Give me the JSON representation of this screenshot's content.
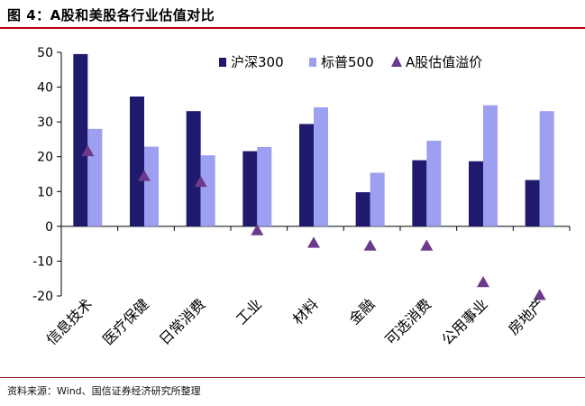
{
  "header": {
    "title": "图 4：A股和美股各行业估值对比"
  },
  "footer": {
    "source": "资料来源：Wind、国信证券经济研究所整理"
  },
  "colors": {
    "title_rule": "#c0000f",
    "csi300": "#1f1a6e",
    "sp500": "#9d9ff0",
    "premium": "#6b3a8a"
  },
  "chart_data": {
    "type": "bar",
    "title": "",
    "xlabel": "",
    "ylabel": "",
    "ylim": [
      -20,
      50
    ],
    "yticks": [
      -20,
      -10,
      0,
      10,
      20,
      30,
      40,
      50
    ],
    "grid": false,
    "legend_position": "top-right",
    "categories": [
      "信息技术",
      "医疗保健",
      "日常消费",
      "工业",
      "材料",
      "金融",
      "可选消费",
      "公用事业",
      "房地产"
    ],
    "series": [
      {
        "name": "沪深300",
        "kind": "bar",
        "color": "#1f1a6e",
        "values": [
          49.5,
          37.3,
          33.1,
          21.6,
          29.4,
          9.8,
          19.0,
          18.7,
          13.3
        ]
      },
      {
        "name": "标普500",
        "kind": "bar",
        "color": "#9d9ff0",
        "values": [
          28.0,
          22.9,
          20.4,
          22.8,
          34.2,
          15.4,
          24.6,
          34.8,
          33.1
        ]
      },
      {
        "name": "A股估值溢价",
        "kind": "marker",
        "color": "#6b3a8a",
        "values": [
          21.5,
          14.4,
          12.7,
          -1.2,
          -4.8,
          -5.6,
          -5.6,
          -16.1,
          -19.8
        ]
      }
    ]
  }
}
